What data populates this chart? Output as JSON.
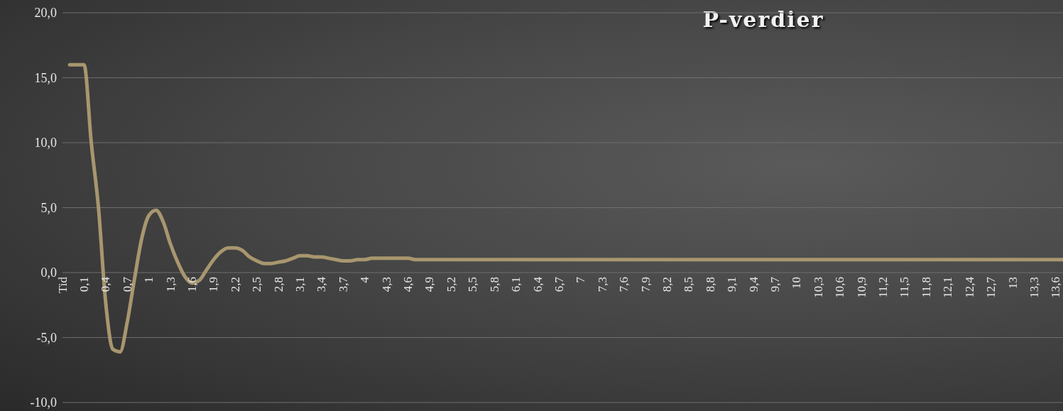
{
  "chart_data": {
    "type": "line",
    "title": "P-verdier",
    "categories": [
      "Tid",
      null,
      null,
      "0,1",
      null,
      null,
      "0,4",
      null,
      null,
      "0,7",
      null,
      null,
      "1",
      null,
      null,
      "1,3",
      null,
      null,
      "1,6",
      null,
      null,
      "1,9",
      null,
      null,
      "2,2",
      null,
      null,
      "2,5",
      null,
      null,
      "2,8",
      null,
      null,
      "3,1",
      null,
      null,
      "3,4",
      null,
      null,
      "3,7",
      null,
      null,
      "4",
      null,
      null,
      "4,3",
      null,
      null,
      "4,6",
      null,
      null,
      "4,9",
      null,
      null,
      "5,2",
      null,
      null,
      "5,5",
      null,
      null,
      "5,8",
      null,
      null,
      "6,1",
      null,
      null,
      "6,4",
      null,
      null,
      "6,7",
      null,
      null,
      "7",
      null,
      null,
      "7,3",
      null,
      null,
      "7,6",
      null,
      null,
      "7,9",
      null,
      null,
      "8,2",
      null,
      null,
      "8,5",
      null,
      null,
      "8,8",
      null,
      null,
      "9,1",
      null,
      null,
      "9,4",
      null,
      null,
      "9,7",
      null,
      null,
      "10",
      null,
      null,
      "10,3",
      null,
      null,
      "10,6",
      null,
      null,
      "10,9",
      null,
      null,
      "11,2",
      null,
      null,
      "11,5",
      null,
      null,
      "11,8",
      null,
      null,
      "12,1",
      null,
      null,
      "12,4",
      null,
      null,
      "12,7",
      null,
      null,
      "13",
      null,
      null,
      "13,3",
      null,
      null,
      "13,6",
      null
    ],
    "series": [
      {
        "color": "#a8966e",
        "values": [
          null,
          16,
          16,
          16,
          10,
          5,
          -2.3,
          -5.9,
          -6.1,
          -3.8,
          -0.5,
          2.6,
          4.4,
          4.8,
          3.9,
          2.2,
          0.8,
          -0.3,
          -0.8,
          -0.6,
          0.2,
          1.0,
          1.6,
          1.9,
          1.9,
          1.7,
          1.2,
          0.9,
          0.7,
          0.7,
          0.8,
          0.9,
          1.1,
          1.3,
          1.3,
          1.2,
          1.2,
          1.1,
          1.0,
          0.9,
          0.9,
          1.0,
          1.0,
          1.1,
          1.1,
          1.1,
          1.1,
          1.1,
          1.1,
          1.0,
          1.0,
          1.0,
          1.0,
          1.0,
          1.0,
          1.0,
          1.0,
          1.0,
          1.0,
          1.0,
          1.0,
          1.0,
          1.0,
          1.0,
          1.0,
          1.0,
          1.0,
          1.0,
          1.0,
          1.0,
          1.0,
          1.0,
          1.0,
          1.0,
          1.0,
          1.0,
          1.0,
          1.0,
          1.0,
          1.0,
          1.0,
          1.0,
          1.0,
          1.0,
          1.0,
          1.0,
          1.0,
          1.0,
          1.0,
          1.0,
          1.0,
          1.0,
          1.0,
          1.0,
          1.0,
          1.0,
          1.0,
          1.0,
          1.0,
          1.0,
          1.0,
          1.0,
          1.0,
          1.0,
          1.0,
          1.0,
          1.0,
          1.0,
          1.0,
          1.0,
          1.0,
          1.0,
          1.0,
          1.0,
          1.0,
          1.0,
          1.0,
          1.0,
          1.0,
          1.0,
          1.0,
          1.0,
          1.0,
          1.0,
          1.0,
          1.0,
          1.0,
          1.0,
          1.0,
          1.0,
          1.0,
          1.0,
          1.0,
          1.0,
          1.0,
          1.0,
          1.0,
          1.0,
          1.0,
          1.0
        ]
      }
    ],
    "ylim": [
      -10,
      20
    ],
    "yticks": [
      {
        "value": -10,
        "label": "-10,0"
      },
      {
        "value": -5,
        "label": "-5,0"
      },
      {
        "value": 0,
        "label": "0,0"
      },
      {
        "value": 5,
        "label": "5,0"
      },
      {
        "value": 10,
        "label": "10,0"
      },
      {
        "value": 15,
        "label": "15,0"
      },
      {
        "value": 20,
        "label": "20,0"
      }
    ],
    "grid": "y",
    "marker": "none",
    "line_style": "solid"
  }
}
